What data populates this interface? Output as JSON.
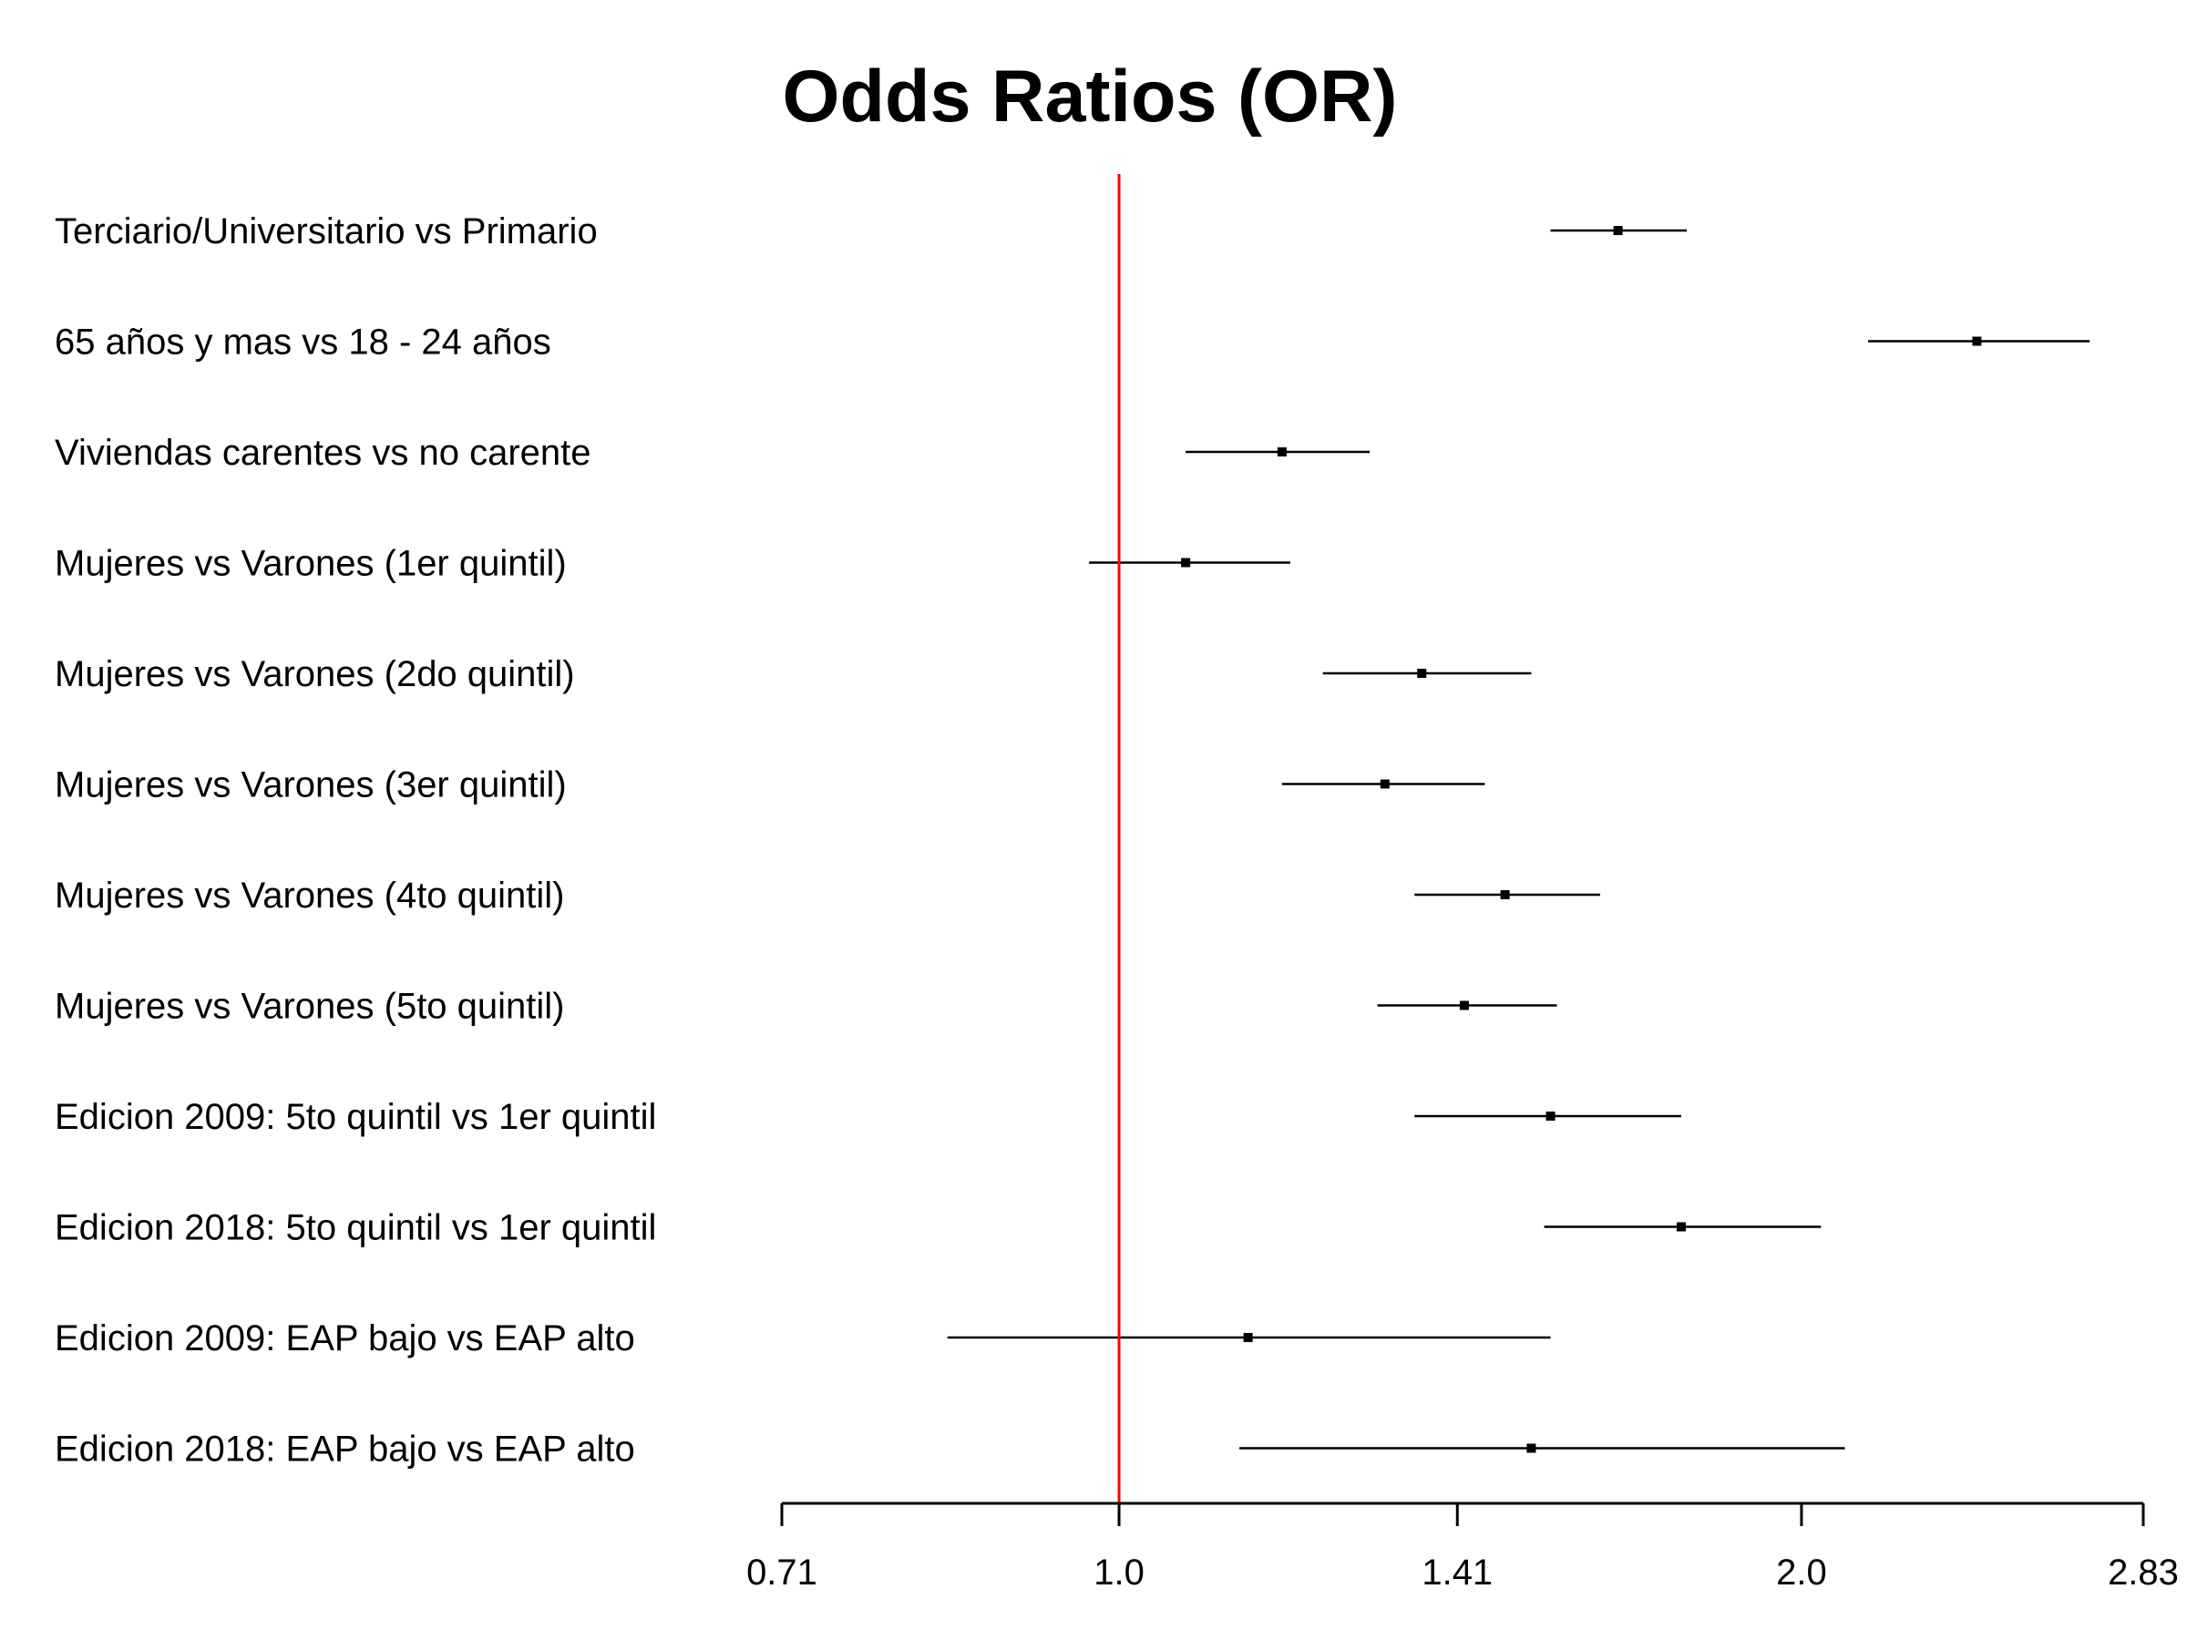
{
  "chart_data": {
    "type": "forest",
    "title": "Odds Ratios (OR)",
    "x_scale": "log2",
    "xlim": [
      0.71,
      2.83
    ],
    "x_ticks": [
      0.71,
      1.0,
      1.41,
      2.0,
      2.83
    ],
    "x_tick_labels": [
      "0.71",
      "1.0",
      "1.41",
      "2.0",
      "2.83"
    ],
    "reference_line": {
      "value": 1.0,
      "color": "#ff0000"
    },
    "point_color": "#000000",
    "grid": false,
    "rows": [
      {
        "label": "Terciario/Universitario vs Primario",
        "or": 1.66,
        "lower": 1.55,
        "upper": 1.78
      },
      {
        "label": "65 años y mas vs 18 - 24 años",
        "or": 2.39,
        "lower": 2.14,
        "upper": 2.68
      },
      {
        "label": "Viviendas carentes vs no carente",
        "or": 1.18,
        "lower": 1.07,
        "upper": 1.29
      },
      {
        "label": "Mujeres vs Varones (1er quintil)",
        "or": 1.07,
        "lower": 0.97,
        "upper": 1.19
      },
      {
        "label": "Mujeres vs Varones (2do quintil)",
        "or": 1.36,
        "lower": 1.23,
        "upper": 1.52
      },
      {
        "label": "Mujeres vs Varones (3er quintil)",
        "or": 1.31,
        "lower": 1.18,
        "upper": 1.45
      },
      {
        "label": "Mujeres vs Varones (4to quintil)",
        "or": 1.48,
        "lower": 1.35,
        "upper": 1.63
      },
      {
        "label": "Mujeres vs Varones (5to quintil)",
        "or": 1.42,
        "lower": 1.3,
        "upper": 1.56
      },
      {
        "label": "Edicion 2009: 5to quintil vs 1er quintil",
        "or": 1.55,
        "lower": 1.35,
        "upper": 1.77
      },
      {
        "label": "Edicion 2018: 5to quintil vs 1er quintil",
        "or": 1.77,
        "lower": 1.54,
        "upper": 2.04
      },
      {
        "label": "Edicion 2009: EAP bajo vs EAP alto",
        "or": 1.14,
        "lower": 0.84,
        "upper": 1.55
      },
      {
        "label": "Edicion 2018: EAP bajo vs EAP alto",
        "or": 1.52,
        "lower": 1.13,
        "upper": 2.09
      }
    ]
  }
}
